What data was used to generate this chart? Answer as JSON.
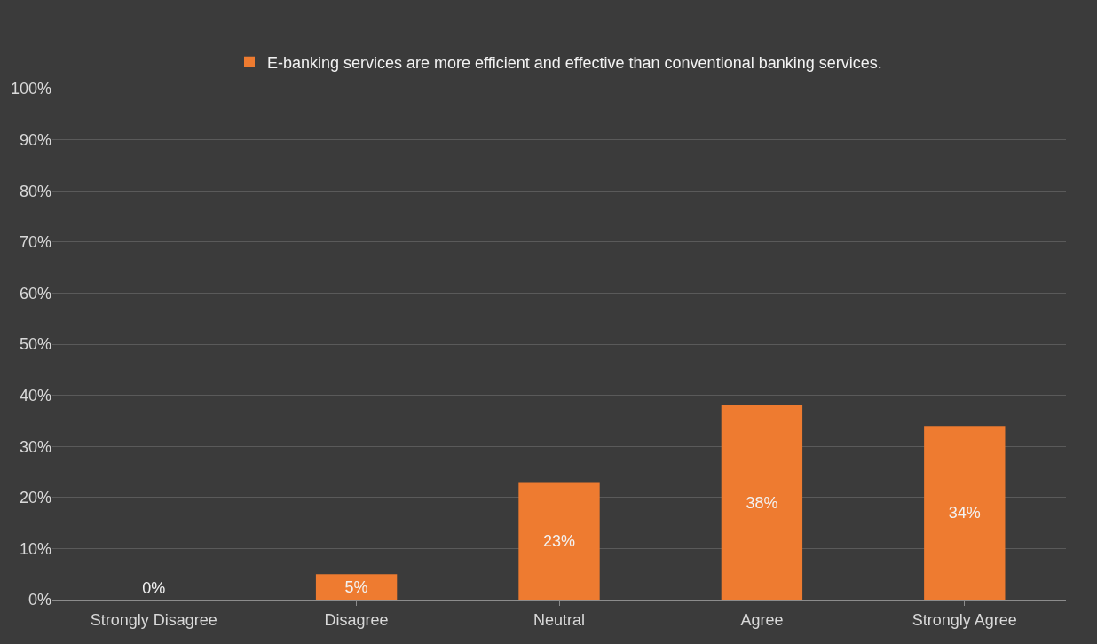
{
  "chart_data": {
    "type": "bar",
    "categories": [
      "Strongly Disagree",
      "Disagree",
      "Neutral",
      "Agree",
      "Strongly Agree"
    ],
    "series": [
      {
        "name": "E-banking services are more efficient and effective than conventional banking services.",
        "color": "#ee7b30",
        "values": [
          0,
          5,
          23,
          38,
          34
        ],
        "value_labels": [
          "0%",
          "5%",
          "23%",
          "38%",
          "34%"
        ]
      }
    ],
    "ylim": [
      0,
      100
    ],
    "yticks": [
      {
        "value": 0,
        "label": "0%"
      },
      {
        "value": 10,
        "label": "10%"
      },
      {
        "value": 20,
        "label": "20%"
      },
      {
        "value": 30,
        "label": "30%"
      },
      {
        "value": 40,
        "label": "40%"
      },
      {
        "value": 50,
        "label": "50%"
      },
      {
        "value": 60,
        "label": "60%"
      },
      {
        "value": 70,
        "label": "70%"
      },
      {
        "value": 80,
        "label": "80%"
      },
      {
        "value": 90,
        "label": "90%"
      },
      {
        "value": 100,
        "label": "100%"
      }
    ],
    "grid": "y",
    "legend": "top"
  }
}
